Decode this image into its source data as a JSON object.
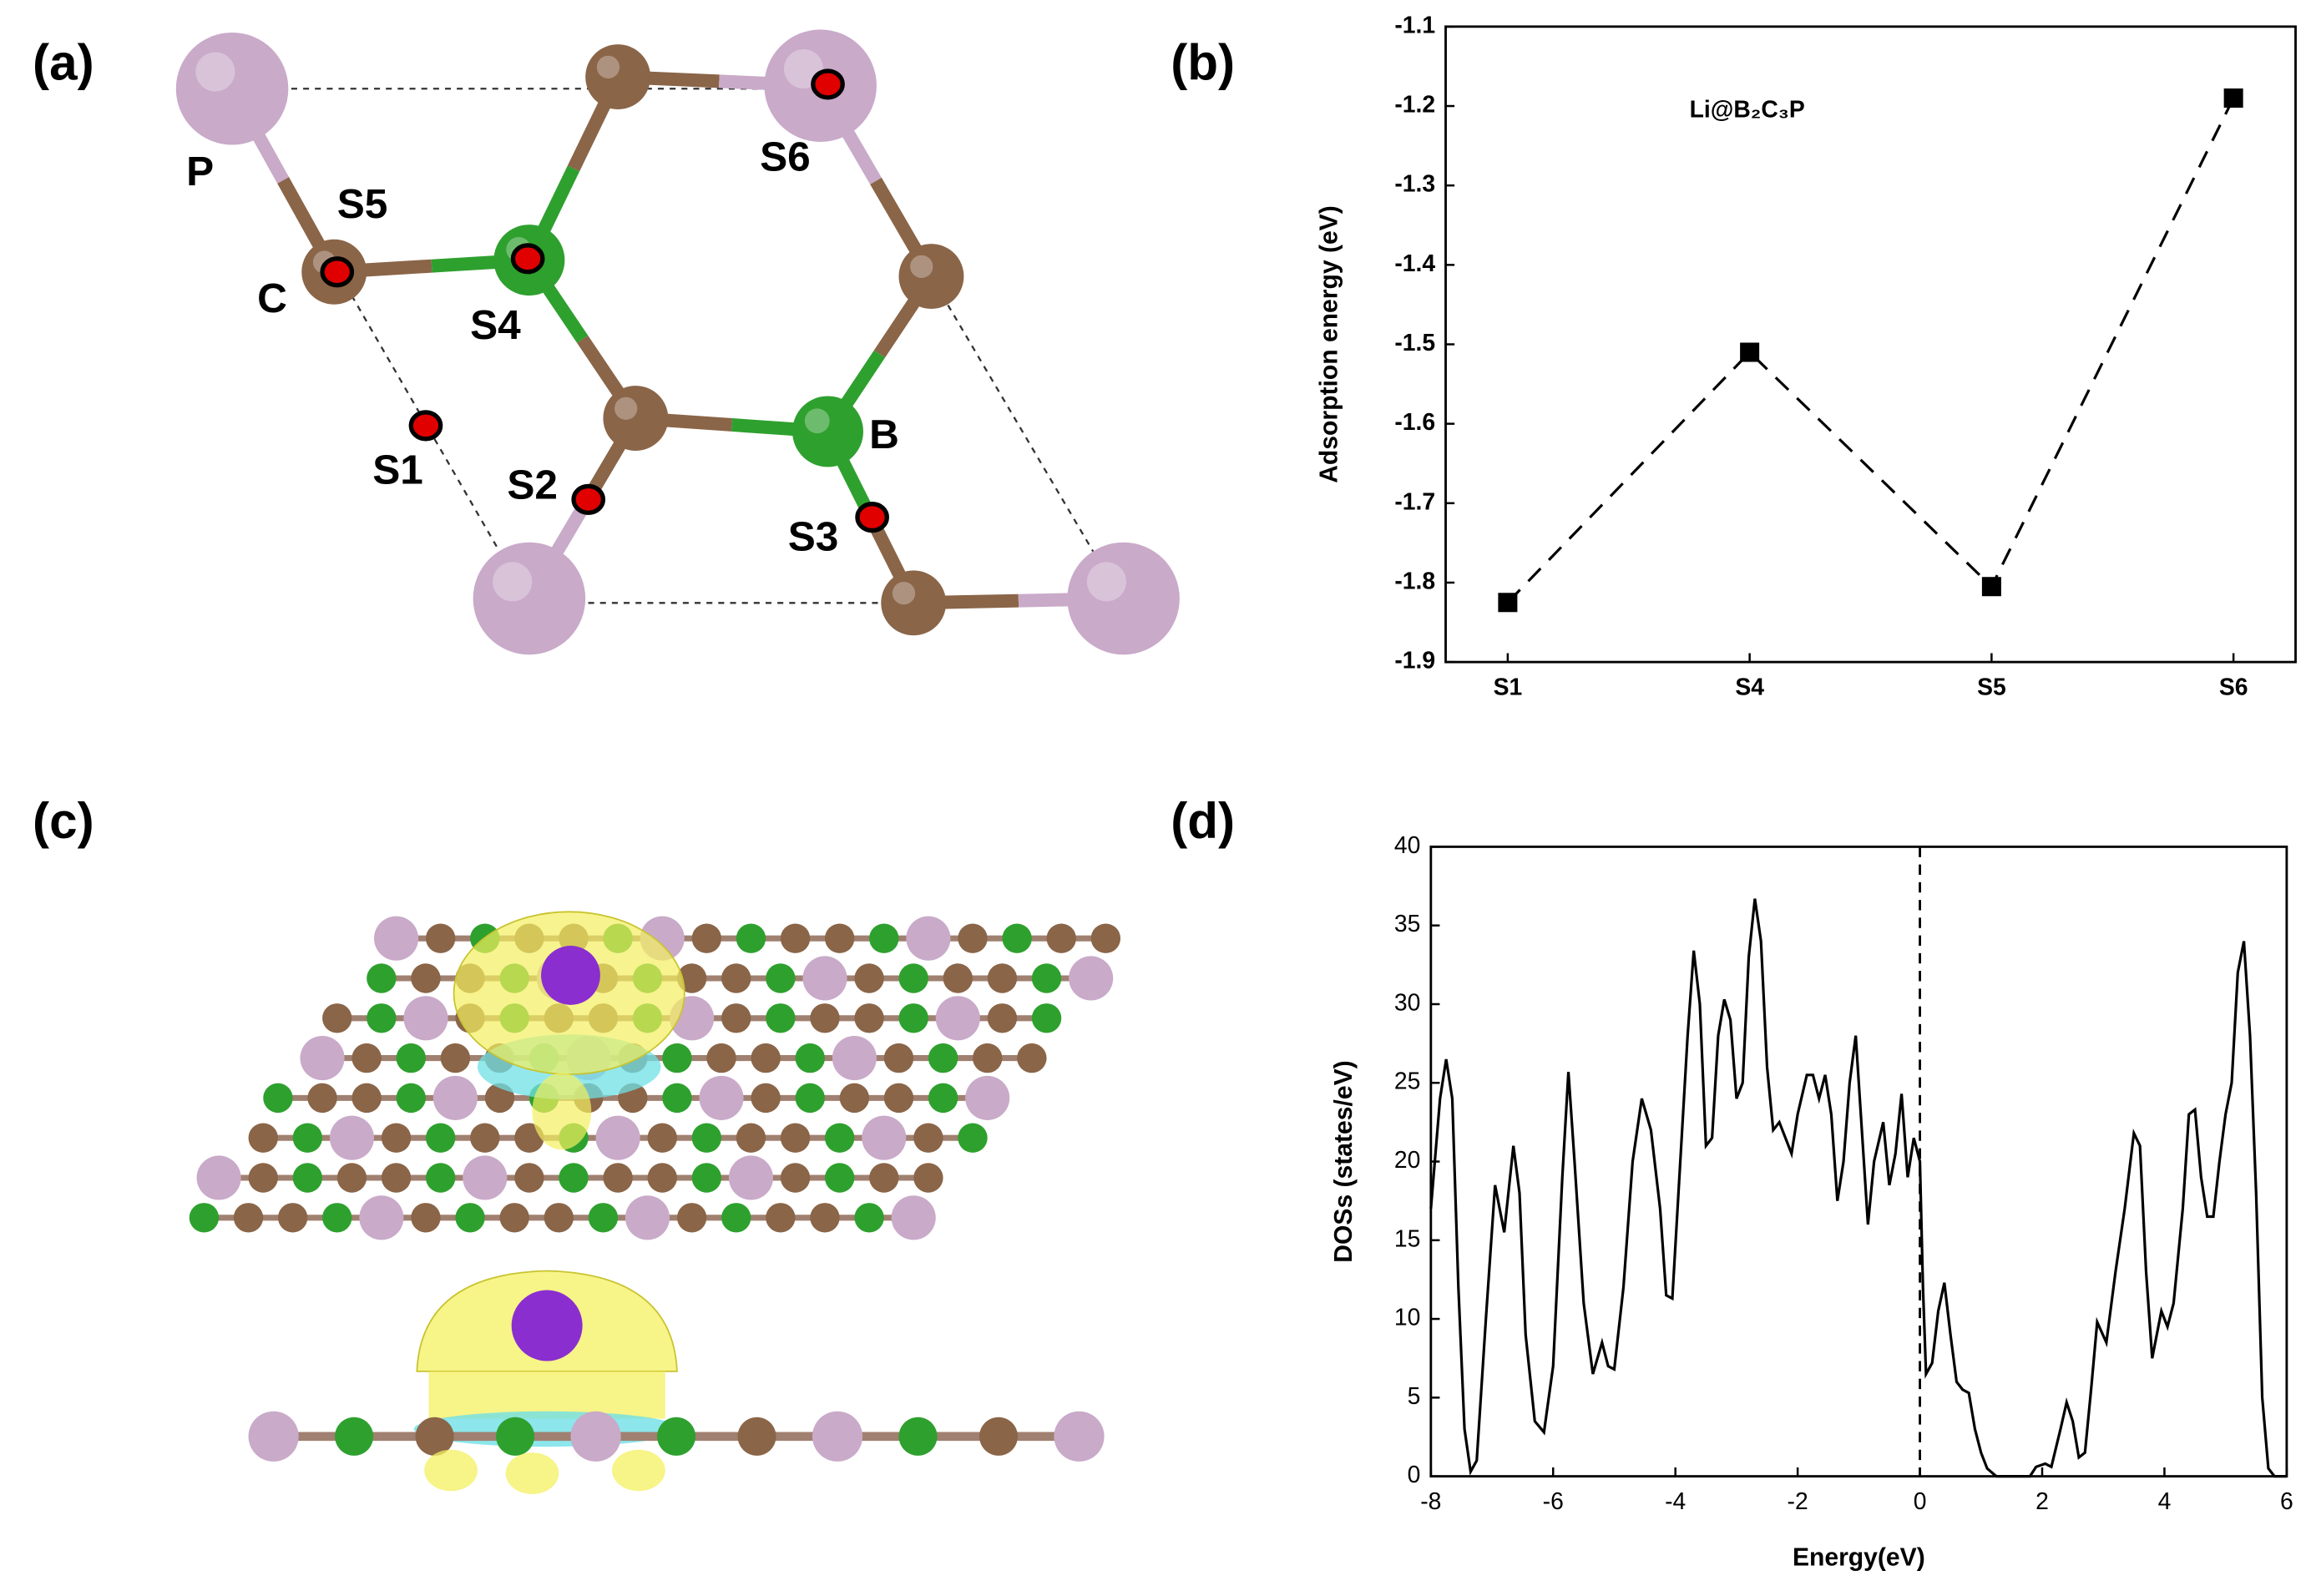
{
  "panel_labels": [
    "(a)",
    "(b)",
    "(c)",
    "(d)"
  ],
  "structure": {
    "atom_labels": [
      "P",
      "C",
      "B"
    ],
    "site_labels": [
      "S1",
      "S2",
      "S3",
      "S4",
      "S5",
      "S6"
    ]
  },
  "chart_data": [
    {
      "type": "line",
      "annotation": "Li@B₂C₃P",
      "y_label": "Adsorption energy (eV)",
      "categories": [
        "S1",
        "S4",
        "S5",
        "S6"
      ],
      "values": [
        -1.825,
        -1.51,
        -1.805,
        -1.19
      ],
      "color": "#000000",
      "line_style": "dashed",
      "marker": "square",
      "ylim": [
        -1.9,
        -1.1
      ],
      "yticks": [
        -1.9,
        -1.8,
        -1.7,
        -1.6,
        -1.5,
        -1.4,
        -1.3,
        -1.2,
        -1.1
      ]
    },
    {
      "type": "line",
      "x_label": "Energy(eV)",
      "y_label": "DOSs (states/eV)",
      "x": [
        -8,
        -7.85,
        -7.75,
        -7.65,
        -7.55,
        -7.45,
        -7.35,
        -7.25,
        -7.1,
        -6.95,
        -6.8,
        -6.65,
        -6.55,
        -6.45,
        -6.3,
        -6.15,
        -6.0,
        -5.85,
        -5.75,
        -5.65,
        -5.5,
        -5.35,
        -5.2,
        -5.1,
        -5.0,
        -4.85,
        -4.7,
        -4.55,
        -4.4,
        -4.25,
        -4.15,
        -4.05,
        -3.95,
        -3.8,
        -3.7,
        -3.6,
        -3.5,
        -3.4,
        -3.3,
        -3.2,
        -3.1,
        -3.0,
        -2.9,
        -2.8,
        -2.7,
        -2.6,
        -2.5,
        -2.4,
        -2.3,
        -2.2,
        -2.1,
        -2.0,
        -1.85,
        -1.75,
        -1.65,
        -1.55,
        -1.45,
        -1.35,
        -1.25,
        -1.15,
        -1.05,
        -0.95,
        -0.85,
        -0.75,
        -0.6,
        -0.5,
        -0.4,
        -0.3,
        -0.2,
        -0.1,
        0.0,
        0.05,
        0.1,
        0.2,
        0.3,
        0.4,
        0.5,
        0.6,
        0.7,
        0.8,
        0.9,
        1.0,
        1.1,
        1.25,
        1.8,
        1.9,
        2.05,
        2.15,
        2.3,
        2.4,
        2.5,
        2.6,
        2.7,
        2.8,
        2.9,
        3.05,
        3.2,
        3.35,
        3.5,
        3.6,
        3.7,
        3.8,
        3.95,
        4.05,
        4.15,
        4.3,
        4.4,
        4.5,
        4.6,
        4.7,
        4.8,
        4.9,
        5.0,
        5.1,
        5.2,
        5.3,
        5.4,
        5.5,
        5.6,
        5.7,
        5.8,
        6.0
      ],
      "values": [
        17,
        24,
        26.5,
        24,
        12,
        3,
        0.3,
        1,
        10,
        18.5,
        15.5,
        21,
        18,
        9,
        3.5,
        2.8,
        7,
        19,
        25.7,
        20,
        11,
        6.5,
        8.5,
        7,
        6.8,
        12,
        20,
        24,
        22,
        17,
        11.5,
        11.3,
        18,
        28,
        33.4,
        30,
        21,
        21.5,
        28,
        30.3,
        29,
        24,
        25,
        33,
        36.7,
        34,
        26,
        22,
        22.5,
        21.5,
        20.5,
        23,
        25.5,
        25.5,
        24,
        25.5,
        23,
        17.5,
        20,
        25,
        28,
        22,
        16,
        20,
        22.5,
        18.5,
        20.5,
        24.3,
        19,
        21.5,
        20,
        12,
        6.5,
        7.2,
        10.5,
        12.3,
        9,
        6,
        5.5,
        5.3,
        3,
        1.5,
        0.5,
        0,
        0,
        0.6,
        0.8,
        0.6,
        3,
        4.7,
        3.5,
        1.2,
        1.5,
        5.5,
        9.8,
        8.5,
        13,
        17,
        21.8,
        21,
        13,
        7.5,
        10.5,
        9.5,
        11,
        17,
        23,
        23.3,
        19,
        16.5,
        16.5,
        20,
        23,
        25,
        32,
        34,
        28,
        18,
        5,
        0.5,
        0,
        0
      ],
      "color": "#000000",
      "vlines": [
        0
      ],
      "xlim": [
        -8,
        6
      ],
      "xticks": [
        -8,
        -6,
        -4,
        -2,
        0,
        2,
        4,
        6
      ],
      "ylim": [
        0,
        40
      ],
      "yticks": [
        0,
        5,
        10,
        15,
        20,
        25,
        30,
        35,
        40
      ]
    }
  ]
}
